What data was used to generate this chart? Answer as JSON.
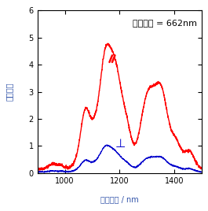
{
  "title": "励起波長 = 662nm",
  "xlabel": "発光波長 / nm",
  "ylabel": "発光強度",
  "xlim": [
    900,
    1500
  ],
  "ylim": [
    0,
    6
  ],
  "yticks": [
    0,
    1,
    2,
    3,
    4,
    5,
    6
  ],
  "xticks": [
    1000,
    1200,
    1400
  ],
  "bg_color": "#ffffff",
  "red_color": "#ff0000",
  "blue_color": "#0000cc"
}
